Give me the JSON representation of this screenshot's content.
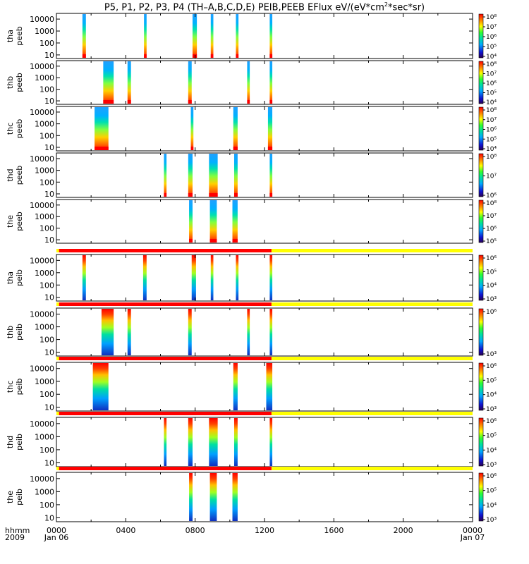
{
  "title": {
    "prefix": "P5, P1, P2, P3, P4 (TH–A,B,C,D,E) PEIB,PEEB EFlux eV/(eV*cm",
    "sup": "2",
    "suffix": "*sec*sr)"
  },
  "x_axis": {
    "corner_labels": [
      "hhmm",
      "2009"
    ],
    "ticks": [
      {
        "label": "0000",
        "sub": "Jan 06",
        "hour": 0
      },
      {
        "label": "0400",
        "sub": "",
        "hour": 4
      },
      {
        "label": "0800",
        "sub": "",
        "hour": 8
      },
      {
        "label": "1200",
        "sub": "",
        "hour": 12
      },
      {
        "label": "1600",
        "sub": "",
        "hour": 16
      },
      {
        "label": "2000",
        "sub": "",
        "hour": 20
      },
      {
        "label": "0000",
        "sub": "Jan 07",
        "hour": 24
      }
    ]
  },
  "chart_data": {
    "type": "heatmap",
    "description_scale": "spectrogram, energy (eV) log scale",
    "x_range_hours": [
      0,
      24
    ],
    "y_ticks": [
      "10",
      "100",
      "1000",
      "10000"
    ],
    "y_range_ev": [
      5,
      30000
    ],
    "status_bar": {
      "red_end_hour": 12.4,
      "colors": {
        "red": "#ff0000",
        "yellow": "#ffff00"
      }
    },
    "panels": [
      {
        "probe": "tha",
        "product": "peeb",
        "cbar_ticks": [
          "10⁴",
          "10⁵",
          "10⁶",
          "10⁷",
          "10⁸"
        ],
        "bursts": [
          [
            1.5,
            1.7
          ],
          [
            5.05,
            5.2
          ],
          [
            7.85,
            8.1
          ],
          [
            8.9,
            9.05
          ],
          [
            10.35,
            10.5
          ],
          [
            12.3,
            12.45
          ]
        ]
      },
      {
        "probe": "thb",
        "product": "peeb",
        "cbar_ticks": [
          "10⁴",
          "10⁵",
          "10⁶",
          "10⁷",
          "10⁸"
        ],
        "bursts": [
          [
            2.7,
            3.3
          ],
          [
            4.1,
            4.3
          ],
          [
            7.6,
            7.8
          ],
          [
            11.0,
            11.15
          ],
          [
            12.3,
            12.45
          ]
        ]
      },
      {
        "probe": "thc",
        "product": "peeb",
        "cbar_ticks": [
          "10⁴",
          "10⁵",
          "10⁶",
          "10⁷",
          "10⁸"
        ],
        "bursts": [
          [
            2.2,
            3.0
          ],
          [
            7.75,
            7.9
          ],
          [
            10.2,
            10.45
          ],
          [
            12.2,
            12.45
          ]
        ]
      },
      {
        "probe": "thd",
        "product": "peeb",
        "cbar_ticks": [
          "10⁶",
          "10⁷",
          "10⁸"
        ],
        "bursts": [
          [
            6.2,
            6.35
          ],
          [
            7.6,
            7.85
          ],
          [
            8.8,
            9.3
          ],
          [
            10.25,
            10.45
          ],
          [
            12.3,
            12.45
          ]
        ]
      },
      {
        "probe": "the",
        "product": "peeb",
        "cbar_ticks": [
          "10⁵",
          "10⁶",
          "10⁷",
          "10⁸"
        ],
        "bursts": [
          [
            7.65,
            7.85
          ],
          [
            8.85,
            9.25
          ],
          [
            10.15,
            10.45
          ]
        ]
      },
      {
        "probe": "tha",
        "product": "peib",
        "cbar_ticks": [
          "10³",
          "10⁴",
          "10⁵",
          "10⁶"
        ],
        "bursts": [
          [
            1.5,
            1.7
          ],
          [
            5.0,
            5.2
          ],
          [
            7.8,
            8.05
          ],
          [
            8.9,
            9.05
          ],
          [
            10.35,
            10.5
          ],
          [
            12.3,
            12.45
          ]
        ]
      },
      {
        "probe": "thb",
        "product": "peib",
        "cbar_ticks": [
          "10³",
          "10⁶"
        ],
        "bursts": [
          [
            2.6,
            3.3
          ],
          [
            4.1,
            4.3
          ],
          [
            7.6,
            7.8
          ],
          [
            11.0,
            11.15
          ],
          [
            12.3,
            12.45
          ]
        ]
      },
      {
        "probe": "thc",
        "product": "peib",
        "cbar_ticks": [
          "10³",
          "10⁴",
          "10⁵",
          "10⁶"
        ],
        "bursts": [
          [
            2.1,
            3.0
          ],
          [
            10.2,
            10.45
          ],
          [
            12.1,
            12.45
          ]
        ]
      },
      {
        "probe": "thd",
        "product": "peib",
        "cbar_ticks": [
          "10³",
          "10⁴",
          "10⁵",
          "10⁶"
        ],
        "bursts": [
          [
            6.2,
            6.35
          ],
          [
            7.6,
            7.85
          ],
          [
            8.8,
            9.3
          ],
          [
            10.25,
            10.45
          ],
          [
            12.3,
            12.45
          ]
        ]
      },
      {
        "probe": "the",
        "product": "peib",
        "cbar_ticks": [
          "10³",
          "10⁴",
          "10⁵",
          "10⁶"
        ],
        "bursts": [
          [
            7.65,
            7.85
          ],
          [
            8.85,
            9.25
          ],
          [
            10.15,
            10.45
          ]
        ]
      }
    ]
  }
}
